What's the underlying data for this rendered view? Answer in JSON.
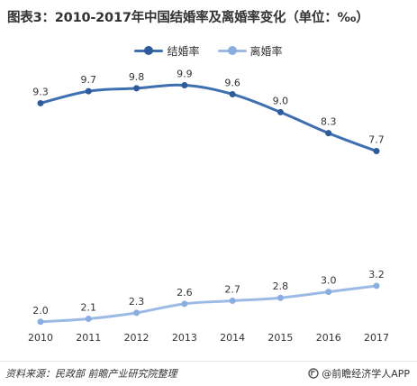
{
  "title": "图表3：2010-2017年中国结婚率及离婚率变化（单位：‰）",
  "source": "资料来源：民政部 前瞻产业研究院整理",
  "brand": "@前瞻经济学人APP",
  "chart_data": {
    "type": "line",
    "categories": [
      "2010",
      "2011",
      "2012",
      "2013",
      "2014",
      "2015",
      "2016",
      "2017"
    ],
    "series": [
      {
        "name": "结婚率",
        "values": [
          9.3,
          9.7,
          9.8,
          9.9,
          9.6,
          9.0,
          8.3,
          7.7
        ],
        "labels": [
          "9.3",
          "9.7",
          "9.8",
          "9.9",
          "9.6",
          "9.0",
          "8.3",
          "7.7"
        ],
        "color": "#3e6fb0",
        "point_color": "#2e5c9a"
      },
      {
        "name": "离婚率",
        "values": [
          2.0,
          2.1,
          2.3,
          2.6,
          2.7,
          2.8,
          3.0,
          3.2
        ],
        "labels": [
          "2.0",
          "2.1",
          "2.3",
          "2.6",
          "2.7",
          "2.8",
          "3.0",
          "3.2"
        ],
        "color": "#9bbbe6",
        "point_color": "#8aaee0"
      }
    ],
    "ylim": [
      1,
      11
    ],
    "grid": false,
    "legend_position": "top-center",
    "xlabel": "",
    "ylabel": ""
  }
}
